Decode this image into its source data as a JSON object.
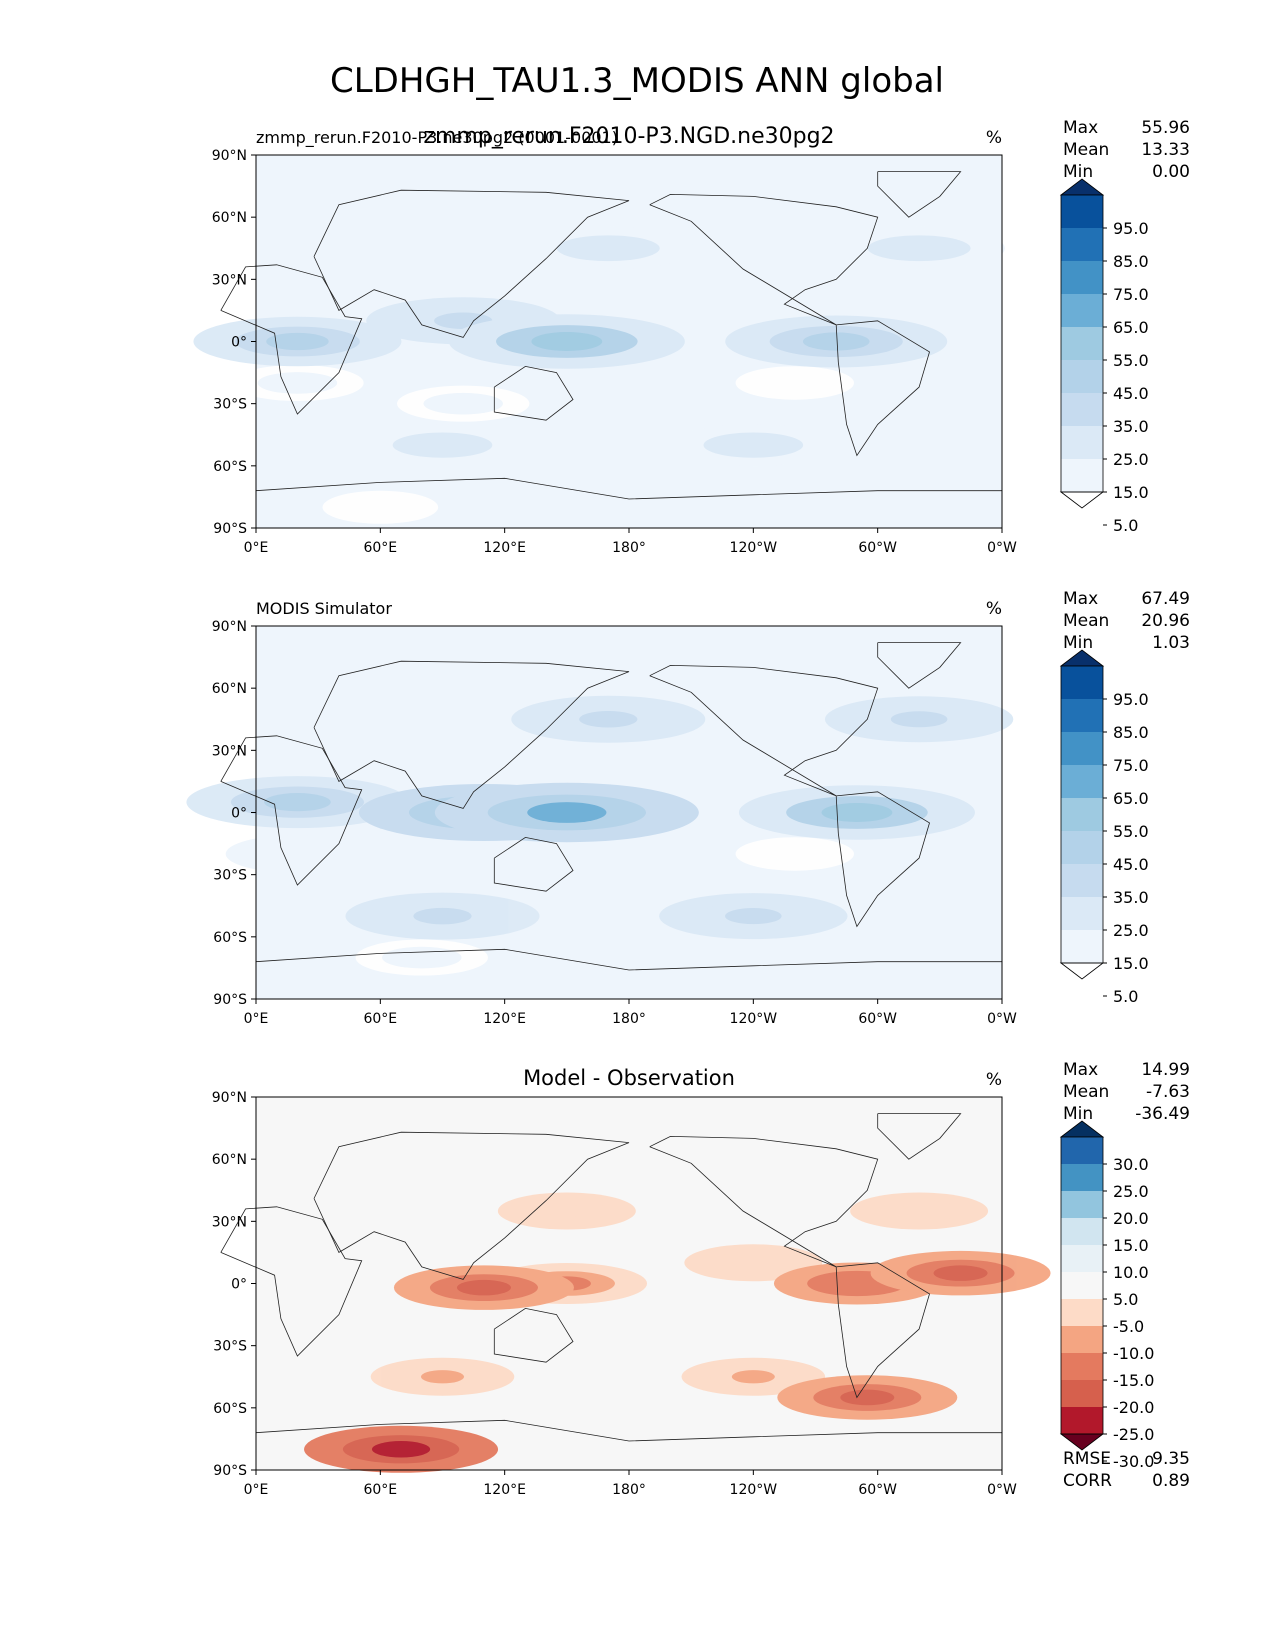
{
  "figure": {
    "title": "CLDHGH_TAU1.3_MODIS ANN global"
  },
  "panels": [
    {
      "left_title": "zmmp_rerun.F2010-P3.ne30pg2 (0001-0001)",
      "center_title": "zmmp_rerun.F2010-P3.NGD.ne30pg2",
      "units": "%",
      "stats": [
        {
          "label": "Max",
          "value": "55.96"
        },
        {
          "label": "Mean",
          "value": "13.33"
        },
        {
          "label": "Min",
          "value": "0.00"
        }
      ]
    },
    {
      "left_title": "MODIS Simulator",
      "center_title": "",
      "units": "%",
      "stats": [
        {
          "label": "Max",
          "value": "67.49"
        },
        {
          "label": "Mean",
          "value": "20.96"
        },
        {
          "label": "Min",
          "value": "1.03"
        }
      ]
    },
    {
      "left_title": "",
      "center_title": "Model - Observation",
      "units": "%",
      "stats": [
        {
          "label": "Max",
          "value": "14.99"
        },
        {
          "label": "Mean",
          "value": "-7.63"
        },
        {
          "label": "Min",
          "value": "-36.49"
        }
      ],
      "metrics": [
        {
          "label": "RMSE",
          "value": "9.35"
        },
        {
          "label": "CORR",
          "value": "0.89"
        }
      ]
    }
  ],
  "chart_data": [
    {
      "type": "heatmap",
      "projection": "cylindrical",
      "x_ticks": [
        "0°E",
        "60°E",
        "120°E",
        "180°",
        "120°W",
        "60°W",
        "0°W"
      ],
      "y_ticks": [
        "90°N",
        "60°N",
        "30°N",
        "0°",
        "30°S",
        "60°S",
        "90°S"
      ],
      "xlim": [
        0,
        360
      ],
      "ylim": [
        -90,
        90
      ],
      "colormap": "Blues",
      "colorbar_levels": [
        "95.0",
        "85.0",
        "75.0",
        "65.0",
        "55.0",
        "45.0",
        "35.0",
        "25.0",
        "15.0",
        "5.0"
      ],
      "colorbar_colors": [
        "#08306b",
        "#08519c",
        "#2171b5",
        "#4292c6",
        "#6baed6",
        "#9ecae1",
        "#b3d2e9",
        "#c6dbef",
        "#dbe9f6",
        "#eef5fc",
        "#ffffff"
      ],
      "features": [
        {
          "lat": 0,
          "lon": 150,
          "value": 45
        },
        {
          "lat": 0,
          "lon": 280,
          "value": 40
        },
        {
          "lat": 0,
          "lon": 20,
          "value": 35
        },
        {
          "lat": 10,
          "lon": 100,
          "value": 30
        },
        {
          "lat": 45,
          "lon": 170,
          "value": 22
        },
        {
          "lat": 45,
          "lon": 320,
          "value": 22
        },
        {
          "lat": -50,
          "lon": 90,
          "value": 20
        },
        {
          "lat": -50,
          "lon": 240,
          "value": 20
        },
        {
          "lat": -20,
          "lon": 260,
          "value": 3
        },
        {
          "lat": -20,
          "lon": 20,
          "value": 8
        },
        {
          "lat": -30,
          "lon": 100,
          "value": 8
        },
        {
          "lat": -80,
          "lon": 60,
          "value": 2
        }
      ]
    },
    {
      "type": "heatmap",
      "projection": "cylindrical",
      "x_ticks": [
        "0°E",
        "60°E",
        "120°E",
        "180°",
        "120°W",
        "60°W",
        "0°W"
      ],
      "y_ticks": [
        "90°N",
        "60°N",
        "30°N",
        "0°",
        "30°S",
        "60°S",
        "90°S"
      ],
      "xlim": [
        0,
        360
      ],
      "ylim": [
        -90,
        90
      ],
      "colormap": "Blues",
      "colorbar_levels": [
        "95.0",
        "85.0",
        "75.0",
        "65.0",
        "55.0",
        "45.0",
        "35.0",
        "25.0",
        "15.0",
        "5.0"
      ],
      "colorbar_colors": [
        "#08306b",
        "#08519c",
        "#2171b5",
        "#4292c6",
        "#6baed6",
        "#9ecae1",
        "#b3d2e9",
        "#c6dbef",
        "#dbe9f6",
        "#eef5fc",
        "#ffffff"
      ],
      "features": [
        {
          "lat": 0,
          "lon": 150,
          "value": 55
        },
        {
          "lat": 0,
          "lon": 110,
          "value": 50
        },
        {
          "lat": 0,
          "lon": 290,
          "value": 45
        },
        {
          "lat": 5,
          "lon": 20,
          "value": 40
        },
        {
          "lat": 45,
          "lon": 170,
          "value": 30
        },
        {
          "lat": 45,
          "lon": 320,
          "value": 28
        },
        {
          "lat": -50,
          "lon": 90,
          "value": 30
        },
        {
          "lat": -50,
          "lon": 240,
          "value": 28
        },
        {
          "lat": -20,
          "lon": 260,
          "value": 3
        },
        {
          "lat": -20,
          "lon": 20,
          "value": 12
        },
        {
          "lat": -70,
          "lon": 80,
          "value": 8
        }
      ]
    },
    {
      "type": "heatmap",
      "projection": "cylindrical",
      "x_ticks": [
        "0°E",
        "60°E",
        "120°E",
        "180°",
        "120°W",
        "60°W",
        "0°W"
      ],
      "y_ticks": [
        "90°N",
        "60°N",
        "30°N",
        "0°",
        "30°S",
        "60°S",
        "90°S"
      ],
      "xlim": [
        0,
        360
      ],
      "ylim": [
        -90,
        90
      ],
      "colormap": "RdBu_r",
      "colorbar_levels": [
        "30.0",
        "25.0",
        "20.0",
        "15.0",
        "10.0",
        "5.0",
        "-5.0",
        "-10.0",
        "-15.0",
        "-20.0",
        "-25.0",
        "-30.0"
      ],
      "colorbar_colors": [
        "#053061",
        "#2166ac",
        "#4393c3",
        "#92c5de",
        "#d1e5f0",
        "#e8f1f6",
        "#f7f7f7",
        "#fddbc7",
        "#f4a582",
        "#e47a5f",
        "#d6604d",
        "#b2182b",
        "#67001f"
      ],
      "features": [
        {
          "lat": -2,
          "lon": 110,
          "value": -25
        },
        {
          "lat": 0,
          "lon": 150,
          "value": -18
        },
        {
          "lat": 5,
          "lon": 340,
          "value": -25
        },
        {
          "lat": 0,
          "lon": 290,
          "value": -20
        },
        {
          "lat": -80,
          "lon": 70,
          "value": -30
        },
        {
          "lat": -45,
          "lon": 90,
          "value": -12
        },
        {
          "lat": -45,
          "lon": 240,
          "value": -12
        },
        {
          "lat": 35,
          "lon": 150,
          "value": -10
        },
        {
          "lat": 35,
          "lon": 320,
          "value": -10
        },
        {
          "lat": -55,
          "lon": 295,
          "value": -25
        },
        {
          "lat": 10,
          "lon": 240,
          "value": -10
        }
      ]
    }
  ]
}
